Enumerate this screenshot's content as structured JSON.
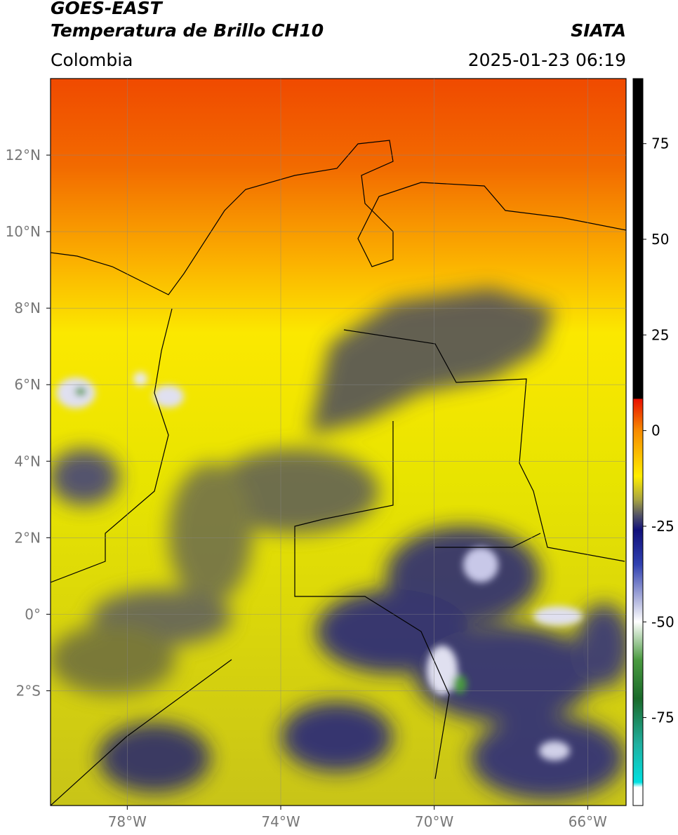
{
  "header": {
    "title": "GOES-EAST",
    "subtitle": "Temperatura de Brillo CH10",
    "region": "Colombia",
    "source": "SIATA",
    "timestamp": "2025-01-23 06:19"
  },
  "map": {
    "lon_range": [
      -80,
      -65
    ],
    "lat_range": [
      -5,
      14
    ],
    "lon_ticks": [
      {
        "value": -78,
        "label": "78°W"
      },
      {
        "value": -74,
        "label": "74°W"
      },
      {
        "value": -70,
        "label": "70°W"
      },
      {
        "value": -66,
        "label": "66°W"
      }
    ],
    "lat_ticks": [
      {
        "value": 12,
        "label": "12°N"
      },
      {
        "value": 10,
        "label": "10°N"
      },
      {
        "value": 8,
        "label": "8°N"
      },
      {
        "value": 6,
        "label": "6°N"
      },
      {
        "value": 4,
        "label": "4°N"
      },
      {
        "value": 2,
        "label": "2°N"
      },
      {
        "value": 0,
        "label": "0°"
      },
      {
        "value": -2,
        "label": "2°S"
      }
    ]
  },
  "colorbar": {
    "range": [
      -98,
      92
    ],
    "ticks": [
      75,
      50,
      25,
      0,
      -25,
      -50,
      -75
    ]
  }
}
